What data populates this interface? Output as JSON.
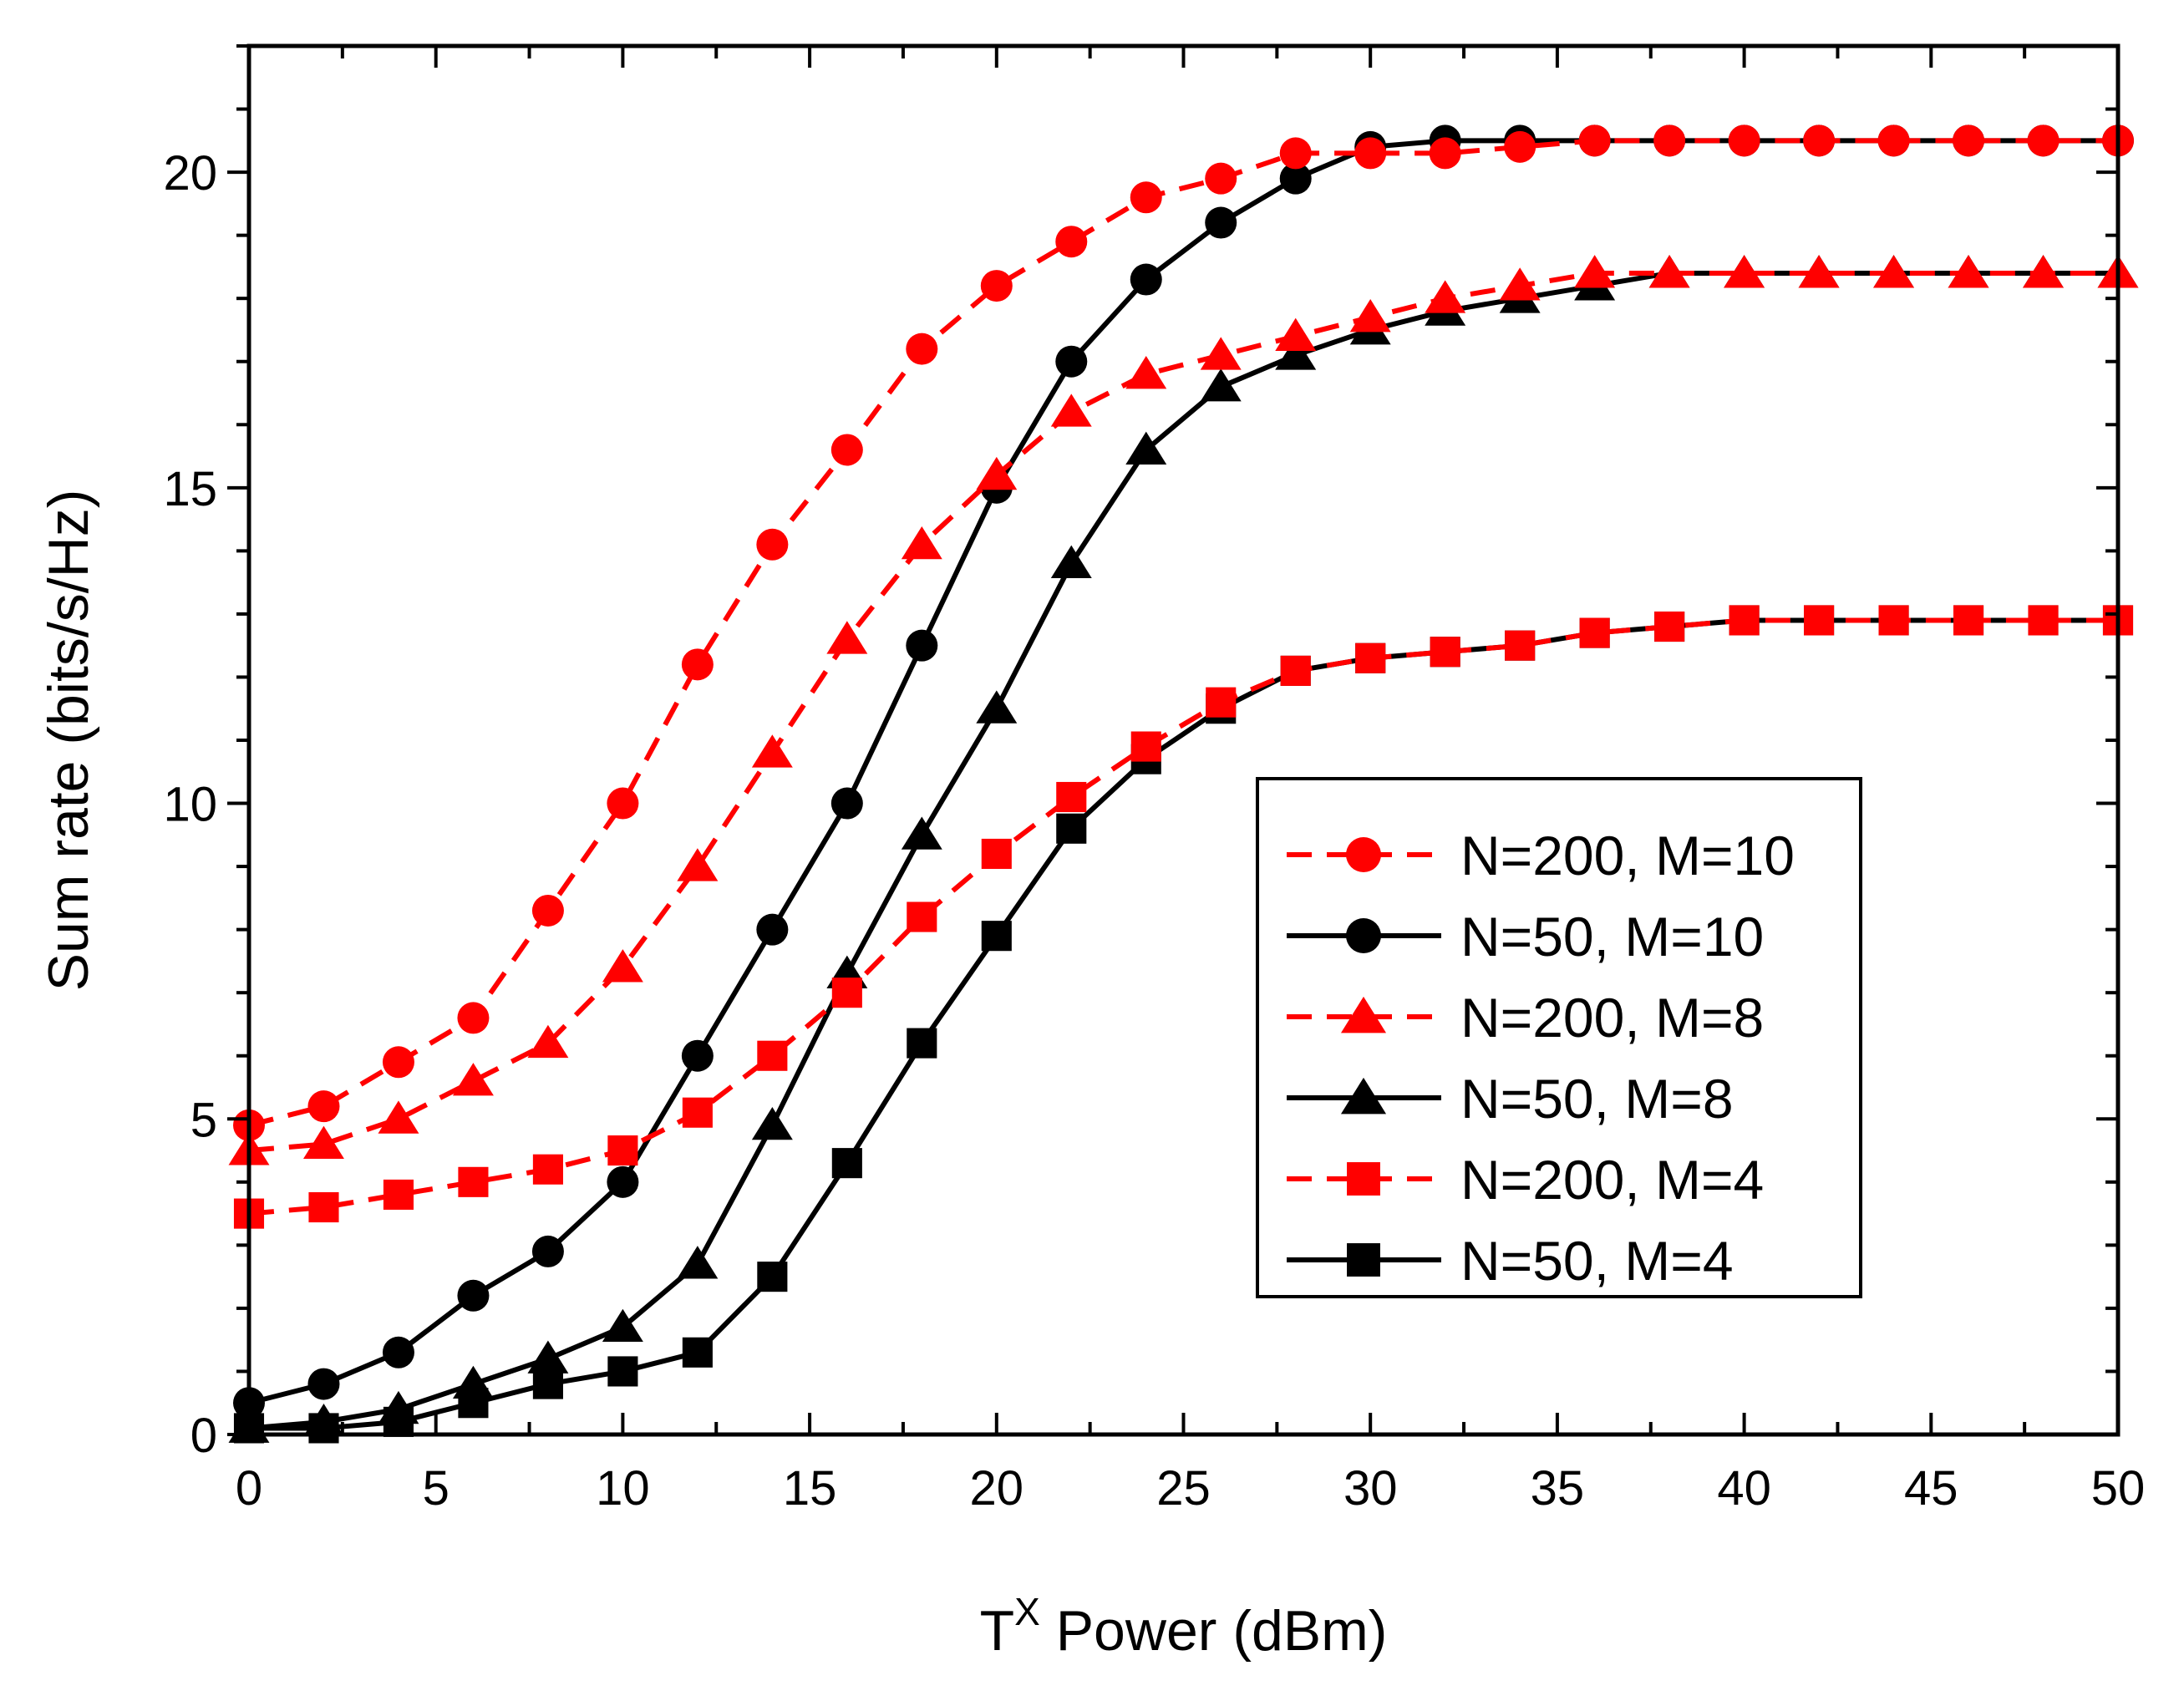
{
  "chart_data": {
    "type": "line",
    "title": "",
    "xlabel": {
      "base": "T",
      "superscript": "X",
      "rest": " Power (dBm)"
    },
    "ylabel": "Sum rate (bits/s/Hz)",
    "xlim": [
      0,
      50
    ],
    "ylim": [
      0,
      22
    ],
    "x_ticks": [
      0,
      5,
      10,
      15,
      20,
      25,
      30,
      35,
      40,
      45,
      50
    ],
    "y_ticks": [
      0,
      5,
      10,
      15,
      20
    ],
    "grid": false,
    "legend_position": "right-center",
    "x": [
      0,
      2,
      4,
      6,
      8,
      10,
      12,
      14,
      16,
      18,
      20,
      22,
      24,
      26,
      28,
      30,
      32,
      34,
      36,
      38,
      40,
      42,
      44,
      46,
      48,
      50
    ],
    "series": [
      {
        "name": "N=200, M=10",
        "color": "#ff0000",
        "dash": true,
        "marker": "circle",
        "values": [
          4.9,
          5.2,
          5.9,
          6.6,
          8.3,
          10.0,
          12.2,
          14.1,
          15.6,
          17.2,
          18.2,
          18.9,
          19.6,
          19.9,
          20.3,
          20.3,
          20.3,
          20.4,
          20.5,
          20.5,
          20.5,
          20.5,
          20.5,
          20.5,
          20.5,
          20.5
        ]
      },
      {
        "name": "N=50, M=10",
        "color": "#000000",
        "dash": false,
        "marker": "circle",
        "values": [
          0.5,
          0.8,
          1.3,
          2.2,
          2.9,
          4.0,
          6.0,
          8.0,
          10.0,
          12.5,
          15.0,
          17.0,
          18.3,
          19.2,
          19.9,
          20.4,
          20.5,
          20.5,
          20.5,
          20.5,
          20.5,
          20.5,
          20.5,
          20.5,
          20.5,
          20.5
        ]
      },
      {
        "name": "N=200, M=8",
        "color": "#ff0000",
        "dash": true,
        "marker": "triangle",
        "values": [
          4.5,
          4.6,
          5.0,
          5.6,
          6.2,
          7.4,
          9.0,
          10.8,
          12.6,
          14.1,
          15.2,
          16.2,
          16.8,
          17.1,
          17.4,
          17.7,
          18.0,
          18.2,
          18.4,
          18.4,
          18.4,
          18.4,
          18.4,
          18.4,
          18.4,
          18.4
        ]
      },
      {
        "name": "N=50, M=8",
        "color": "#000000",
        "dash": false,
        "marker": "triangle",
        "values": [
          0.1,
          0.2,
          0.4,
          0.8,
          1.2,
          1.7,
          2.7,
          4.9,
          7.3,
          9.5,
          11.5,
          13.8,
          15.6,
          16.6,
          17.1,
          17.5,
          17.8,
          18.0,
          18.2,
          18.4,
          18.4,
          18.4,
          18.4,
          18.4,
          18.4,
          18.4
        ]
      },
      {
        "name": "N=200, M=4",
        "color": "#ff0000",
        "dash": true,
        "marker": "square",
        "values": [
          3.5,
          3.6,
          3.8,
          4.0,
          4.2,
          4.5,
          5.1,
          6.0,
          7.0,
          8.2,
          9.2,
          10.1,
          10.9,
          11.6,
          12.1,
          12.3,
          12.4,
          12.5,
          12.7,
          12.8,
          12.9,
          12.9,
          12.9,
          12.9,
          12.9,
          12.9
        ]
      },
      {
        "name": "N=50, M=4",
        "color": "#000000",
        "dash": false,
        "marker": "square",
        "values": [
          0.1,
          0.1,
          0.2,
          0.5,
          0.8,
          1.0,
          1.3,
          2.5,
          4.3,
          6.2,
          7.9,
          9.6,
          10.7,
          11.5,
          12.1,
          12.3,
          12.4,
          12.5,
          12.7,
          12.8,
          12.9,
          12.9,
          12.9,
          12.9,
          12.9,
          12.9
        ]
      }
    ]
  }
}
